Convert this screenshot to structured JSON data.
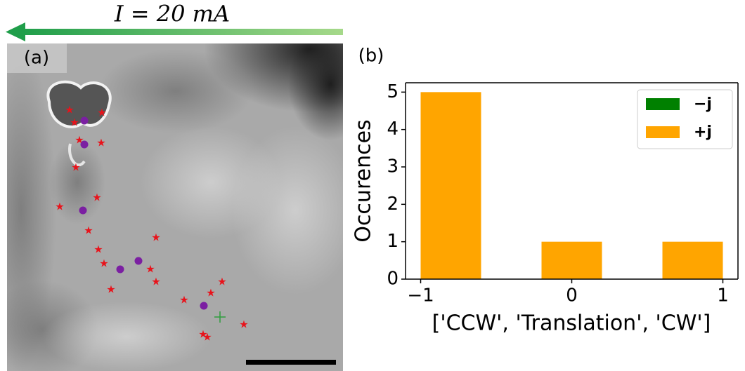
{
  "image_panel": {
    "label": "(a)",
    "current_label": "I = 20 mA"
  },
  "chart_data": {
    "type": "histogram",
    "panel_label": "(b)",
    "xlabel": "['CCW', 'Translation', 'CW']",
    "ylabel": "Occurences",
    "bins": [
      -1,
      -0.6,
      -0.2,
      0.2,
      0.6,
      1
    ],
    "series": [
      {
        "name": "−j",
        "color": "#008000",
        "values": [
          0,
          0,
          0,
          0,
          0
        ]
      },
      {
        "name": "+j",
        "color": "#ffa500",
        "values": [
          5,
          0,
          1,
          0,
          1
        ]
      }
    ],
    "stacked": true,
    "xlim": [
      -1.1,
      1.1
    ],
    "ylim": [
      0,
      5.25
    ],
    "xticks": [
      {
        "value": -1,
        "label": "−1"
      },
      0,
      1
    ],
    "yticks": [
      0,
      1,
      2,
      3,
      4,
      5
    ],
    "legend": "upper right",
    "grid": false
  }
}
